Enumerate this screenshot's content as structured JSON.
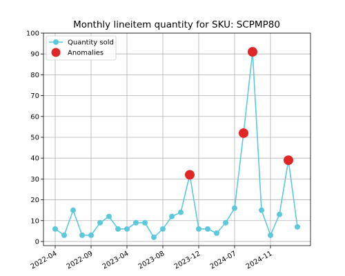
{
  "chart_data": {
    "type": "line",
    "title": "Monthly lineitem quantity for SKU: SCPMP80",
    "xlabel": "",
    "ylabel": "",
    "ylim": [
      -2,
      100
    ],
    "yticks": [
      0,
      10,
      20,
      30,
      40,
      50,
      60,
      70,
      80,
      90,
      100
    ],
    "grid": true,
    "legend_position": "top-left",
    "x_tick_labels": [
      "2022-04",
      "2022-09",
      "2023-04",
      "2023-08",
      "2023-12",
      "2024-07",
      "2024-11"
    ],
    "series": [
      {
        "name": "Quantity sold",
        "kind": "line-with-markers",
        "color": "#5bc8db",
        "values": [
          6,
          3,
          15,
          3,
          3,
          9,
          12,
          6,
          6,
          9,
          9,
          2,
          6,
          12,
          14,
          32,
          6,
          6,
          4,
          9,
          16,
          52,
          91,
          15,
          3,
          13,
          39,
          7
        ]
      },
      {
        "name": "Anomalies",
        "kind": "scatter",
        "color": "#e02626",
        "points": [
          {
            "index": 15,
            "value": 32
          },
          {
            "index": 21,
            "value": 52
          },
          {
            "index": 22,
            "value": 91
          },
          {
            "index": 26,
            "value": 39
          }
        ]
      }
    ]
  }
}
